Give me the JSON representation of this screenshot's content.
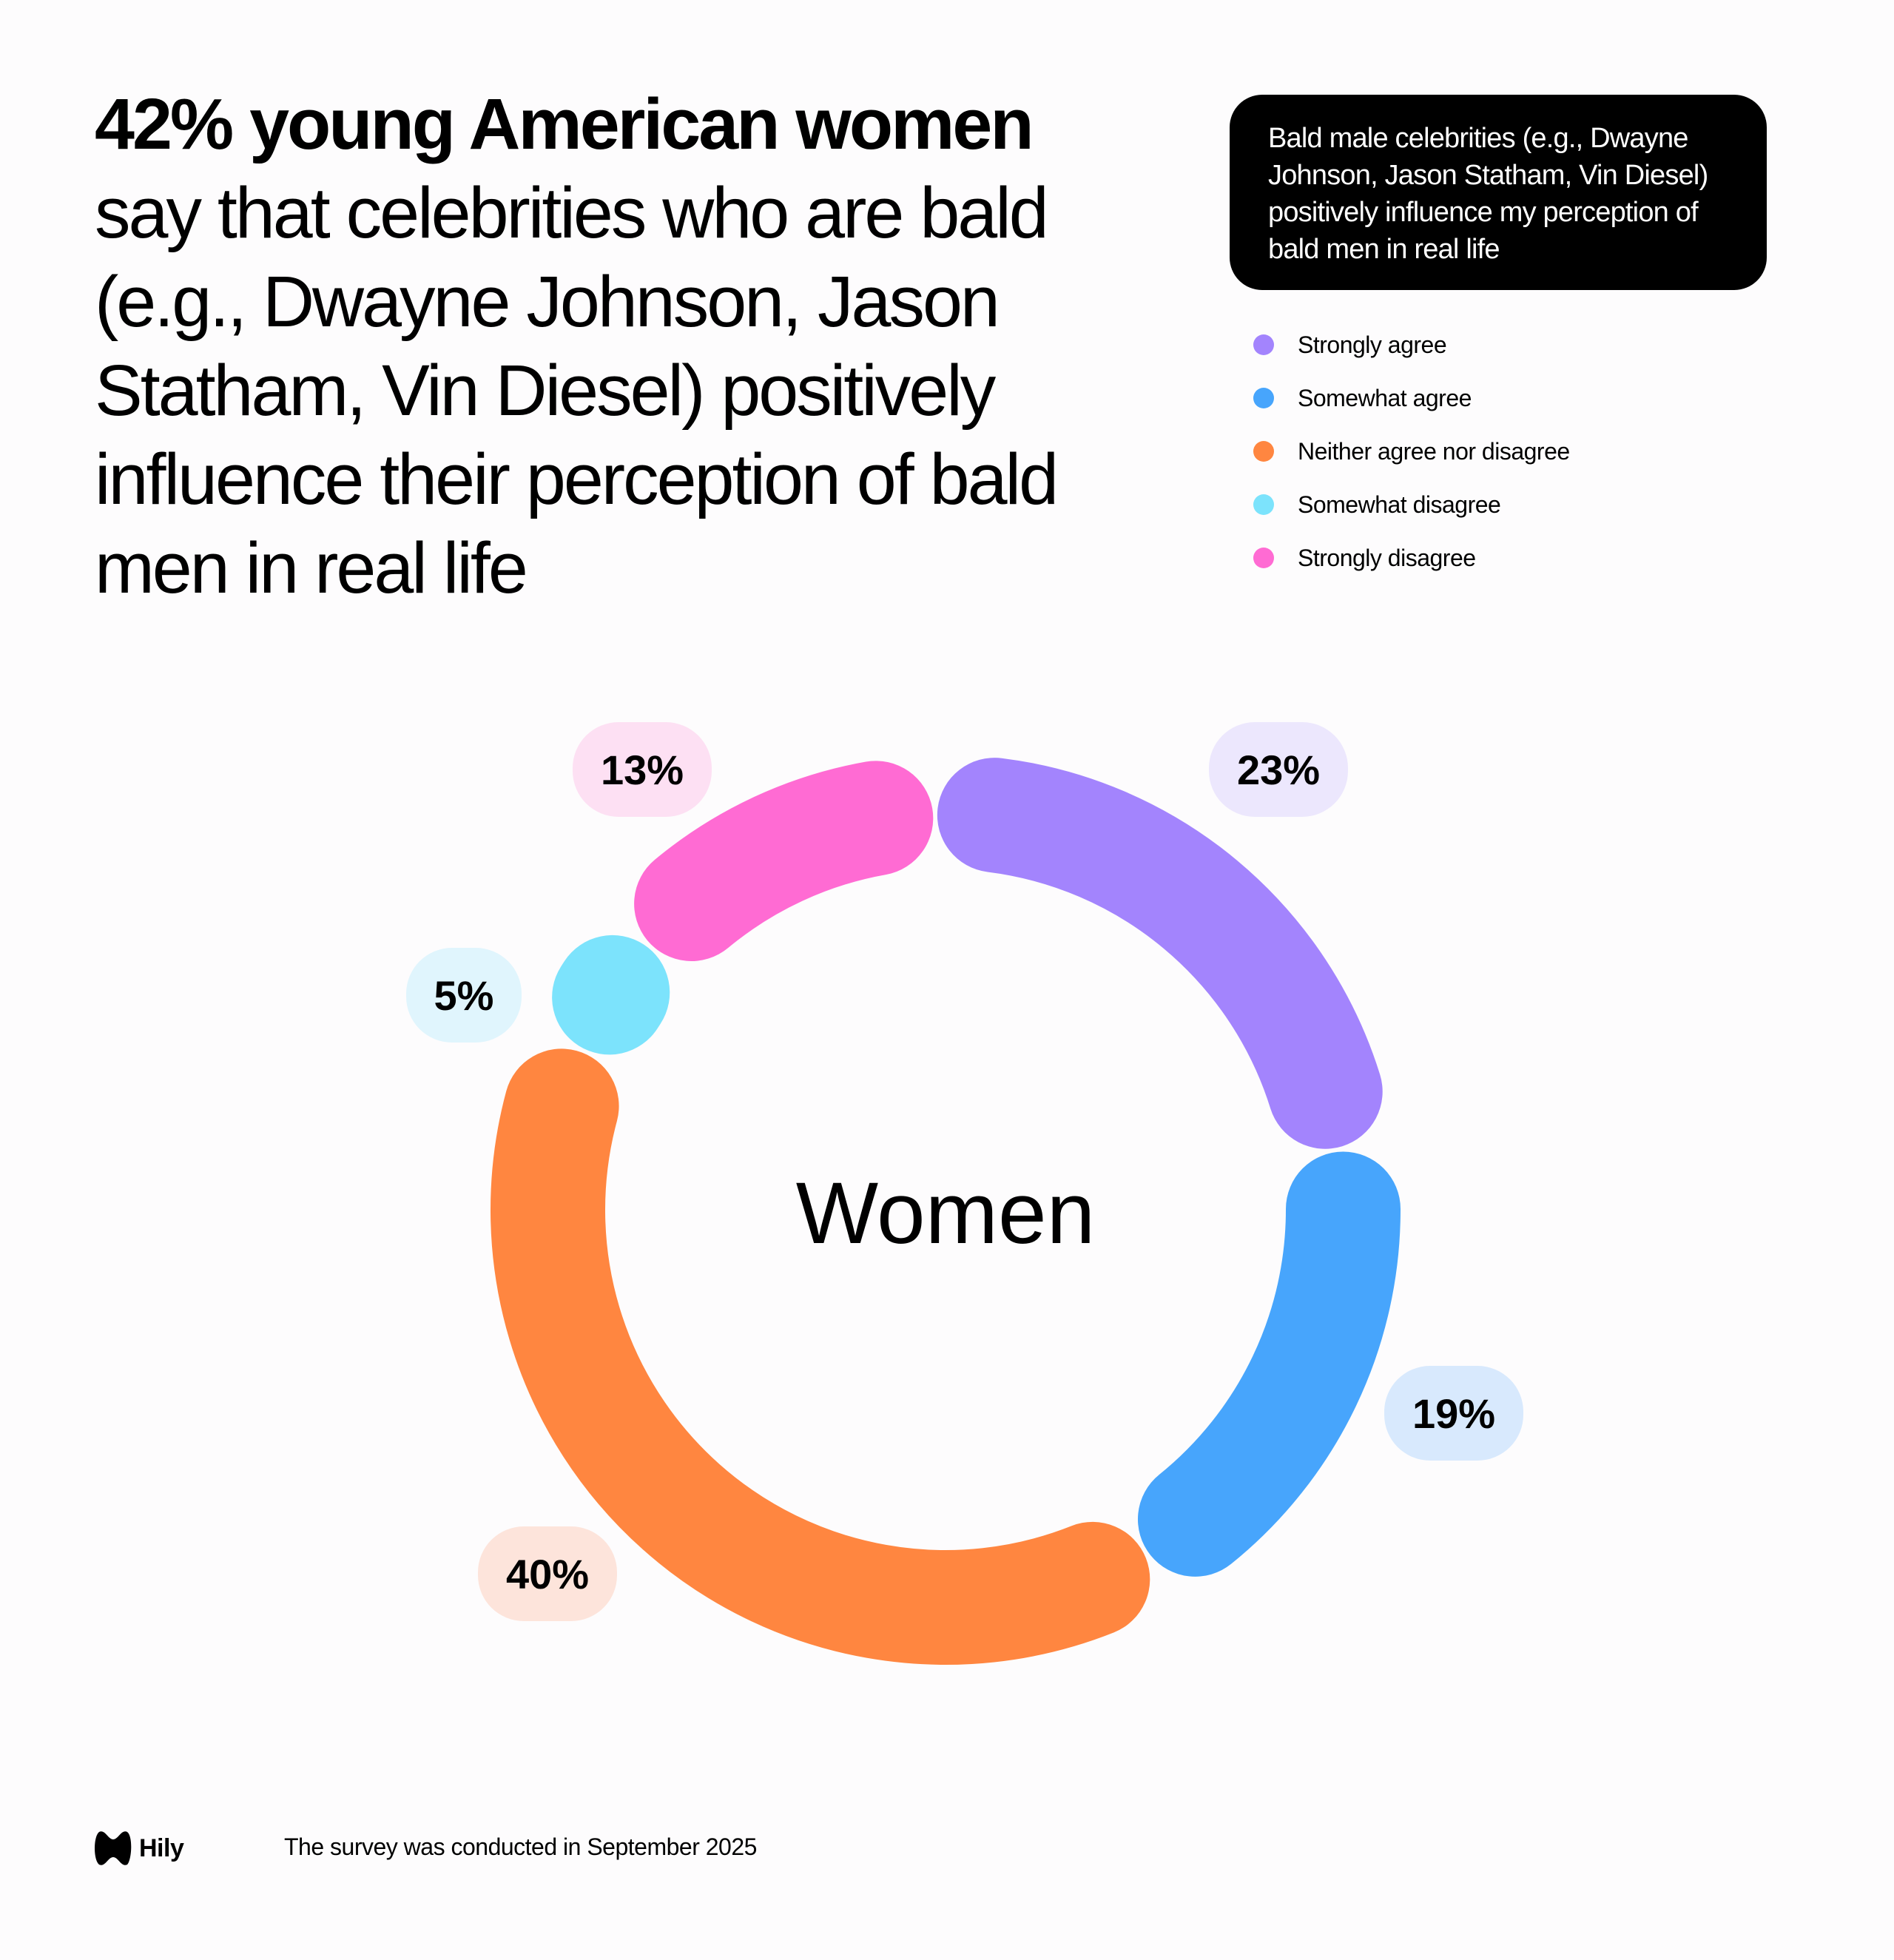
{
  "headline": {
    "bold": "42% young American women",
    "rest": "say that celebrities who are bald (e.g., Dwayne Johnson, Jason Statham, Vin Diesel) positively influence their perception of bald men in real life"
  },
  "question": "Bald male celebrities (e.g., Dwayne Johnson, Jason Statham, Vin Diesel) positively influence my perception of bald men in real life",
  "footer": {
    "logo_text": "Hily",
    "note": "The survey was conducted in September 2025"
  },
  "chart_data": {
    "type": "pie",
    "variant": "donut",
    "title": "Bald male celebrities (e.g., Dwayne Johnson, Jason Statham, Vin Diesel) positively influence my perception of bald men in real life",
    "center_label": "Women",
    "legend_position": "top-right",
    "categories": [
      "Strongly agree",
      "Somewhat agree",
      "Neither agree nor disagree",
      "Somewhat disagree",
      "Strongly disagree"
    ],
    "values": [
      23,
      19,
      40,
      5,
      13
    ],
    "labels": [
      "23%",
      "19%",
      "40%",
      "5%",
      "13%"
    ],
    "colors": [
      "#a384fd",
      "#47a5fc",
      "#ff8640",
      "#7ce3fc",
      "#ff6bd3"
    ],
    "pill_colors": [
      "#ece7fd",
      "#d8e9fd",
      "#fde4db",
      "#e0f5fd",
      "#fde0f3"
    ]
  }
}
